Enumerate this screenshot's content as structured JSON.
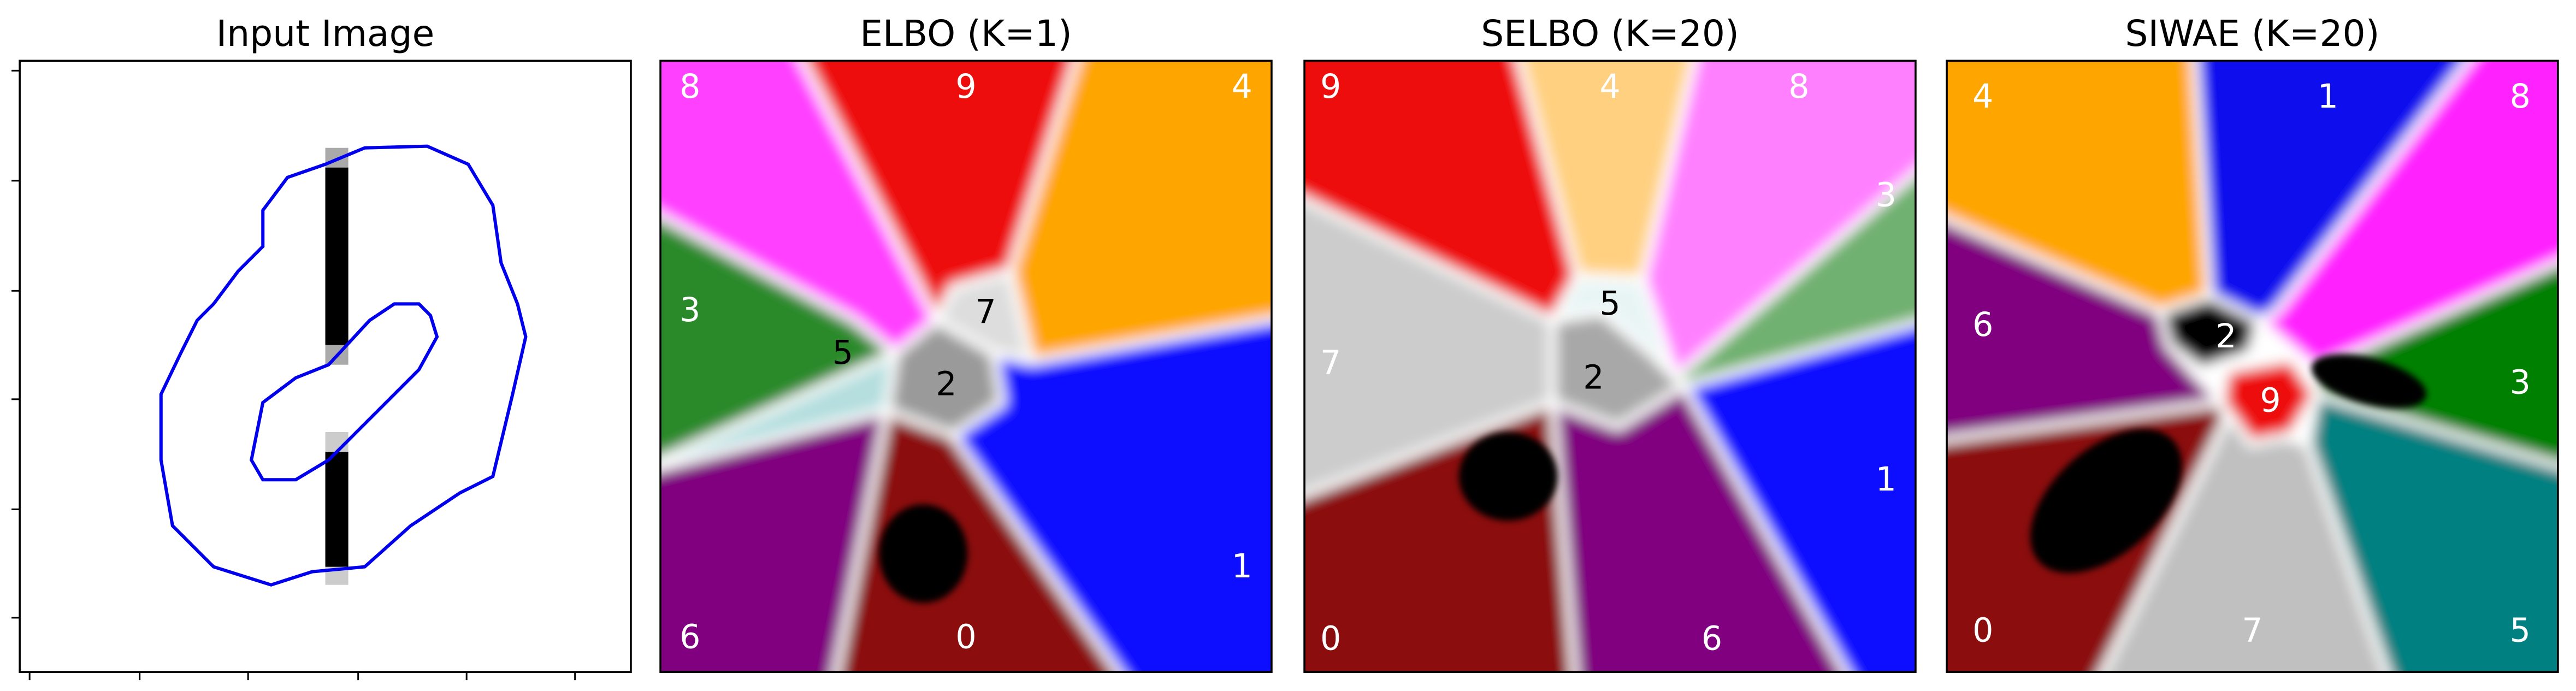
{
  "panels": [
    {
      "title": "Input Image"
    },
    {
      "title": "ELBO (K=1)",
      "labels": [
        "8",
        "9",
        "4",
        "3",
        "5",
        "7",
        "2",
        "1",
        "0",
        "6"
      ]
    },
    {
      "title": "SELBO (K=20)",
      "labels": [
        "9",
        "4",
        "8",
        "3",
        "5",
        "2",
        "7",
        "1",
        "0",
        "6"
      ]
    },
    {
      "title": "SIWAE (K=20)",
      "labels": [
        "4",
        "1",
        "8",
        "6",
        "2",
        "9",
        "3",
        "0",
        "7",
        "5"
      ]
    }
  ]
}
